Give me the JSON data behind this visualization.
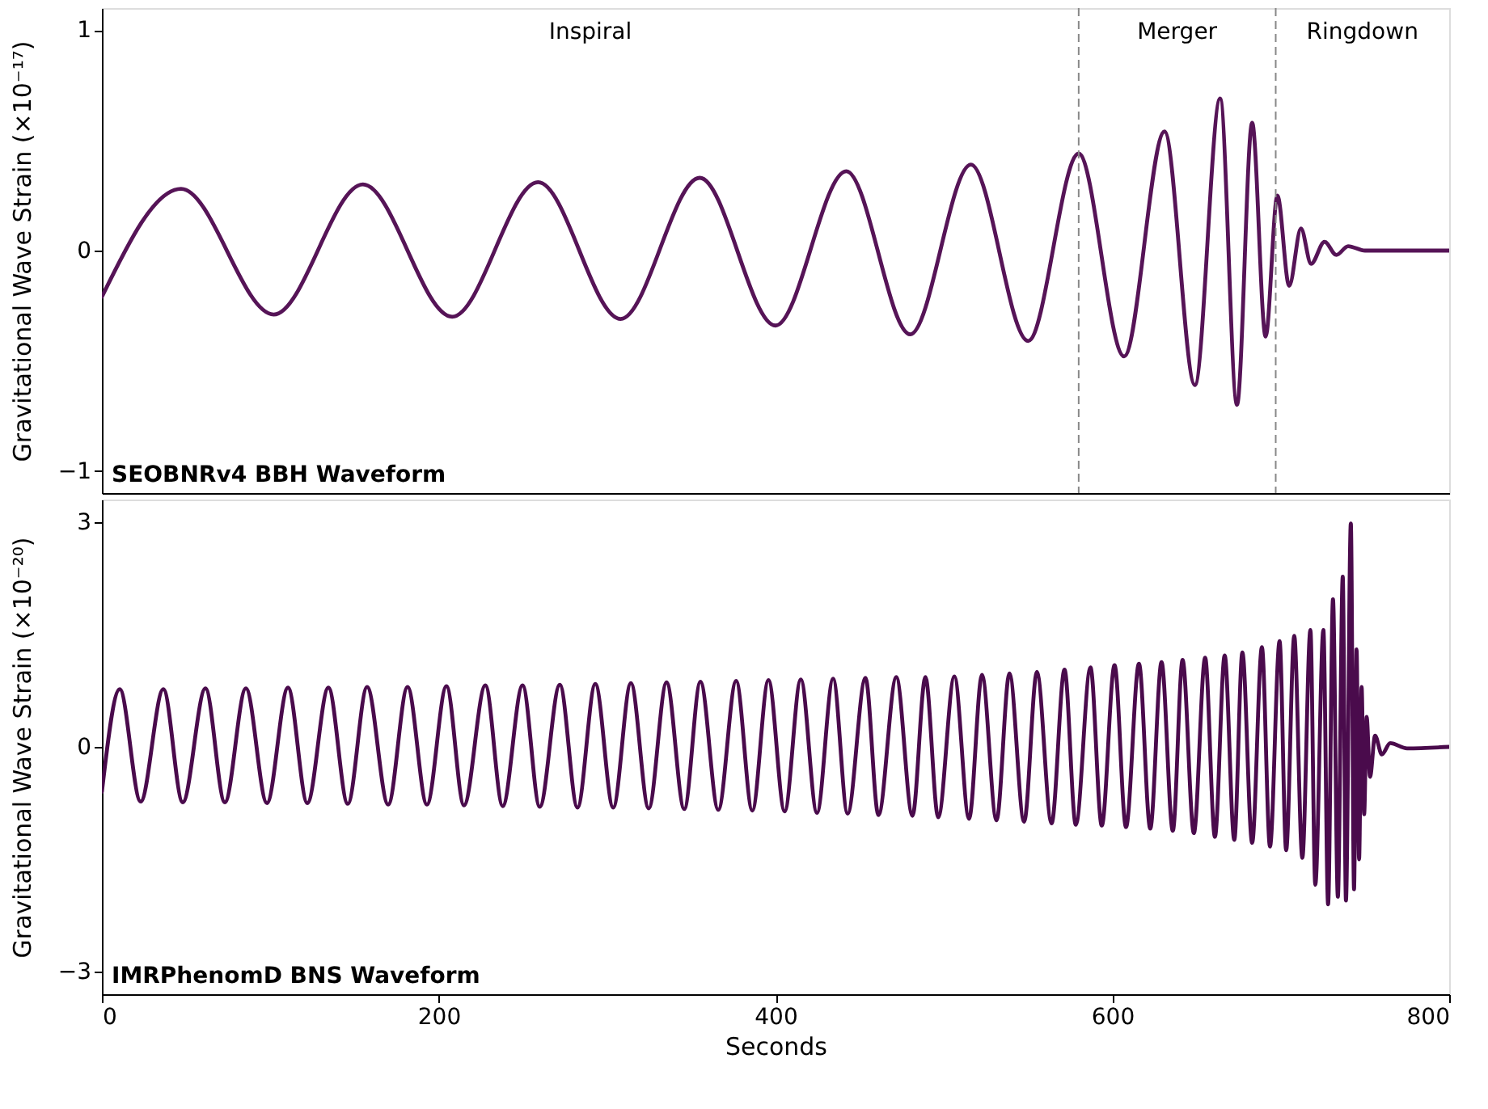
{
  "chart_data": [
    {
      "type": "line",
      "title": "SEOBNRv4 BBH Waveform",
      "ylabel": "Gravitational Wave Strain (×10⁻¹⁷)",
      "xlim": [
        0,
        800
      ],
      "xticks": [
        0,
        200,
        400,
        600,
        800
      ],
      "ylim": [
        -1.1,
        1.1
      ],
      "yticks": [
        -1,
        0,
        1
      ],
      "tick_labels": "y",
      "x": [
        0,
        47,
        102,
        155,
        208,
        259,
        308,
        355,
        400,
        442,
        480,
        516,
        550,
        580,
        607,
        631,
        649,
        664,
        674,
        683,
        691,
        698,
        705,
        712,
        718,
        726,
        733,
        740,
        750,
        800
      ],
      "series": [
        {
          "color": "#561457",
          "values": [
            -0.21,
            0.28,
            -0.29,
            0.3,
            -0.3,
            0.31,
            -0.31,
            0.33,
            -0.34,
            0.36,
            -0.38,
            0.39,
            -0.41,
            0.44,
            -0.48,
            0.54,
            -0.61,
            0.69,
            -0.7,
            0.58,
            -0.39,
            0.25,
            -0.16,
            0.1,
            -0.06,
            0.04,
            -0.02,
            0.02,
            0,
            0
          ]
        }
      ],
      "ref_lines": [
        {
          "axis": "x",
          "value": 580,
          "color": "#888888",
          "line_style": "dashed"
        },
        {
          "axis": "x",
          "value": 697,
          "color": "#888888",
          "line_style": "dashed"
        }
      ],
      "annotations": [
        "Inspiral",
        "Merger",
        "Ringdown"
      ]
    },
    {
      "type": "line",
      "title": "IMRPhenomD BNS Waveform",
      "xlabel": "Seconds",
      "ylabel": "Gravitational Wave Strain (×10⁻²⁰)",
      "xlim": [
        0,
        800
      ],
      "xticks": [
        0,
        200,
        400,
        600,
        800
      ],
      "ylim": [
        -3.3,
        3.3
      ],
      "yticks": [
        -3,
        0,
        3
      ],
      "x": [
        0,
        10.6,
        23,
        36.5,
        48,
        61.5,
        73,
        85.5,
        98,
        110.5,
        122,
        134.5,
        146,
        157.5,
        170,
        181.5,
        193,
        204.6,
        215,
        227.7,
        238,
        249.8,
        260,
        271.9,
        282.4,
        293,
        303.6,
        314.1,
        324.7,
        335.3,
        345.8,
        355.4,
        366,
        376.6,
        386.2,
        395.8,
        405.4,
        415,
        424.6,
        434.2,
        442.8,
        453.4,
        461.1,
        471.7,
        481.3,
        489,
        496.6,
        506.2,
        514.9,
        522.6,
        531.2,
        538.9,
        547.6,
        555.2,
        563.9,
        571.6,
        578.3,
        587,
        593.7,
        601.3,
        608.1,
        615.8,
        622.5,
        629.2,
        635.9,
        641.7,
        648.4,
        655.1,
        660.9,
        666.7,
        672.4,
        677.2,
        683,
        688.8,
        693.6,
        699.3,
        703.2,
        708,
        712.8,
        717.6,
        720.5,
        725.3,
        728.1,
        731,
        733.9,
        736.8,
        738.7,
        741.6,
        743.5,
        745,
        746.5,
        748,
        749.5,
        751,
        753,
        756,
        760,
        765,
        775,
        800
      ],
      "series": [
        {
          "color": "#4a0b4c",
          "values": [
            -0.6,
            0.77,
            -0.73,
            0.77,
            -0.74,
            0.78,
            -0.74,
            0.78,
            -0.75,
            0.79,
            -0.75,
            0.79,
            -0.76,
            0.8,
            -0.77,
            0.8,
            -0.77,
            0.81,
            -0.78,
            0.82,
            -0.79,
            0.82,
            -0.8,
            0.83,
            -0.81,
            0.84,
            -0.81,
            0.85,
            -0.82,
            0.86,
            -0.83,
            0.87,
            -0.84,
            0.88,
            -0.85,
            0.89,
            -0.86,
            0.9,
            -0.88,
            0.91,
            -0.89,
            0.92,
            -0.91,
            0.93,
            -0.92,
            0.93,
            -0.94,
            0.94,
            -0.96,
            0.96,
            -0.98,
            0.98,
            -1.0,
            1.0,
            -1.02,
            1.03,
            -1.04,
            1.06,
            -1.05,
            1.09,
            -1.07,
            1.11,
            -1.09,
            1.13,
            -1.12,
            1.16,
            -1.15,
            1.19,
            -1.2,
            1.22,
            -1.24,
            1.26,
            -1.28,
            1.33,
            -1.33,
            1.41,
            -1.38,
            1.48,
            -1.48,
            1.56,
            -1.84,
            1.56,
            -2.1,
            1.97,
            -2.0,
            2.27,
            -2.05,
            2.98,
            -1.9,
            1.3,
            -1.5,
            0.8,
            -0.9,
            0.4,
            -0.4,
            0.15,
            -0.1,
            0.05,
            -0.02,
            0
          ]
        }
      ]
    }
  ]
}
